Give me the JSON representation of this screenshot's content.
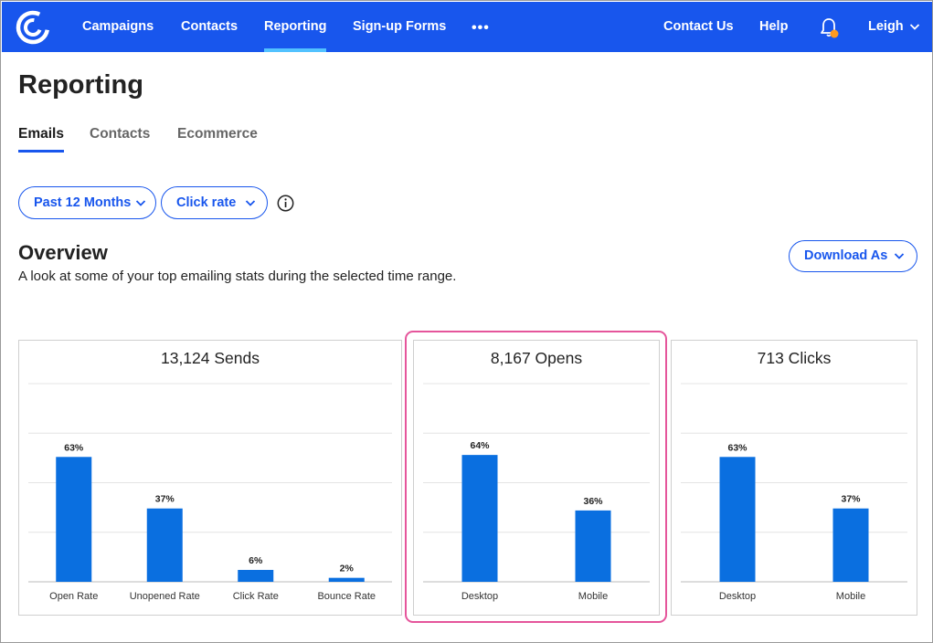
{
  "nav": {
    "items": [
      {
        "label": "Campaigns",
        "active": false
      },
      {
        "label": "Contacts",
        "active": false
      },
      {
        "label": "Reporting",
        "active": true
      },
      {
        "label": "Sign-up Forms",
        "active": false
      }
    ],
    "more": "•••",
    "contact_us": "Contact Us",
    "help": "Help",
    "user": "Leigh",
    "icons": {
      "logo": "brand-logo-icon",
      "bell": "bell-icon",
      "chevron": "chevron-down-icon"
    },
    "colors": {
      "bar": "#1856ed",
      "active_underline": "#52c2ff",
      "badge": "#ff9a1f"
    }
  },
  "page": {
    "title": "Reporting",
    "tabs": [
      {
        "label": "Emails",
        "active": true
      },
      {
        "label": "Contacts",
        "active": false
      },
      {
        "label": "Ecommerce",
        "active": false
      }
    ],
    "filters": {
      "range": "Past 12 Months",
      "metric": "Click rate"
    },
    "overview": {
      "title": "Overview",
      "description": "A look at some of your top emailing stats during the selected time range.",
      "download": "Download As"
    }
  },
  "chart_data": [
    {
      "type": "bar",
      "title": "13,124 Sends",
      "categories": [
        "Open Rate",
        "Unopened Rate",
        "Click Rate",
        "Bounce Rate"
      ],
      "values": [
        63,
        37,
        6,
        2
      ],
      "labels": [
        "63%",
        "37%",
        "6%",
        "2%"
      ],
      "ylim": [
        0,
        100
      ],
      "color": "#0a6fe0"
    },
    {
      "type": "bar",
      "title": "8,167 Opens",
      "categories": [
        "Desktop",
        "Mobile"
      ],
      "values": [
        64,
        36
      ],
      "labels": [
        "64%",
        "36%"
      ],
      "ylim": [
        0,
        100
      ],
      "color": "#0a6fe0",
      "highlighted": true
    },
    {
      "type": "bar",
      "title": "713 Clicks",
      "categories": [
        "Desktop",
        "Mobile"
      ],
      "values": [
        63,
        37
      ],
      "labels": [
        "63%",
        "37%"
      ],
      "ylim": [
        0,
        100
      ],
      "color": "#0a6fe0"
    }
  ]
}
